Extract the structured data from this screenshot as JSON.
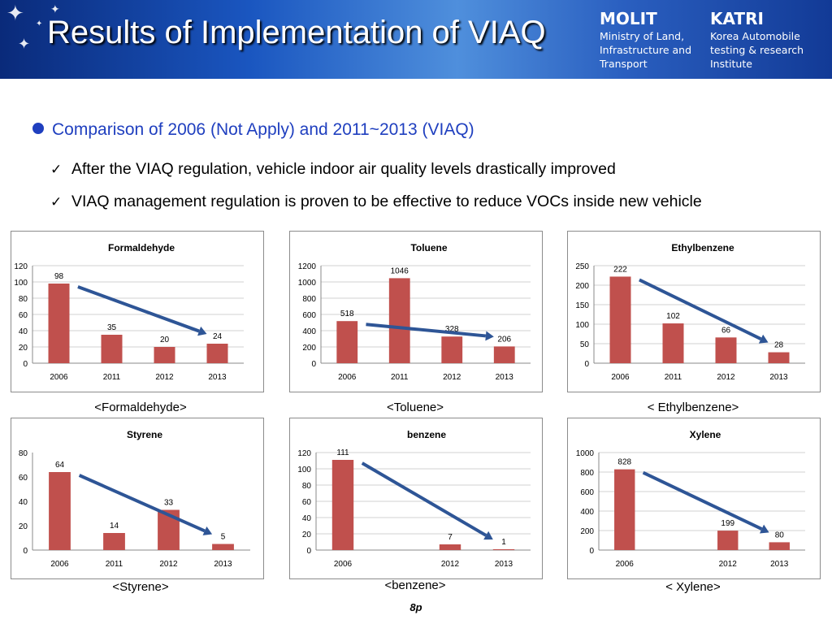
{
  "header": {
    "title": "Results of Implementation of VIAQ",
    "org1": {
      "name": "MOLIT",
      "desc": "Ministry of Land,\nInfrastructure and\nTransport"
    },
    "org2": {
      "name": "KATRI",
      "desc": "Korea Automobile\ntesting & research\nInstitute"
    }
  },
  "section_heading": "Comparison of 2006 (Not Apply) and 2011~2013 (VIAQ)",
  "checks": [
    "After the VIAQ regulation, vehicle indoor air quality levels drastically improved",
    "VIAQ management regulation is proven to be effective to reduce VOCs inside new vehicle"
  ],
  "page_number": "8p",
  "colors": {
    "bar": "#c0504d",
    "arrow": "#2e5596",
    "heading": "#1f3fbf"
  },
  "chart_data": [
    {
      "type": "bar",
      "title": "Formaldehyde",
      "caption": "<Formaldehyde>",
      "categories": [
        "2006",
        "2011",
        "2012",
        "2013"
      ],
      "values": [
        98,
        35,
        20,
        24
      ],
      "ylim": [
        0,
        120
      ],
      "yticks": [
        0,
        20,
        40,
        60,
        80,
        100,
        120
      ],
      "grid": true,
      "trend_arrow": true
    },
    {
      "type": "bar",
      "title": "Toluene",
      "caption": "<Toluene>",
      "categories": [
        "2006",
        "2011",
        "2012",
        "2013"
      ],
      "values": [
        518,
        1046,
        328,
        206
      ],
      "ylim": [
        0,
        1200
      ],
      "yticks": [
        0,
        200,
        400,
        600,
        800,
        1000,
        1200
      ],
      "grid": true,
      "trend_arrow": true
    },
    {
      "type": "bar",
      "title": "Ethylbenzene",
      "caption": "< Ethylbenzene>",
      "categories": [
        "2006",
        "2011",
        "2012",
        "2013"
      ],
      "values": [
        222,
        102,
        66,
        28
      ],
      "ylim": [
        0,
        250
      ],
      "yticks": [
        0,
        50,
        100,
        150,
        200,
        250
      ],
      "grid": true,
      "trend_arrow": true
    },
    {
      "type": "bar",
      "title": "Styrene",
      "caption": "<Styrene>",
      "categories": [
        "2006",
        "2011",
        "2012",
        "2013"
      ],
      "values": [
        64,
        14,
        33,
        5
      ],
      "ylim": [
        0,
        80
      ],
      "yticks": [
        0,
        20,
        40,
        60,
        80
      ],
      "grid": false,
      "trend_arrow": true
    },
    {
      "type": "bar",
      "title": "benzene",
      "caption": "<benzene>",
      "categories": [
        "2006",
        "",
        "2012",
        "2013"
      ],
      "values": [
        111,
        null,
        7,
        1
      ],
      "ylim": [
        0,
        120
      ],
      "yticks": [
        0,
        20,
        40,
        60,
        80,
        100,
        120
      ],
      "grid": true,
      "trend_arrow": true
    },
    {
      "type": "bar",
      "title": "Xylene",
      "caption": "< Xylene>",
      "categories": [
        "2006",
        "",
        "2012",
        "2013"
      ],
      "values": [
        828,
        null,
        199,
        80
      ],
      "ylim": [
        0,
        1000
      ],
      "yticks": [
        0,
        200,
        400,
        600,
        800,
        1000
      ],
      "grid": true,
      "trend_arrow": true
    }
  ]
}
